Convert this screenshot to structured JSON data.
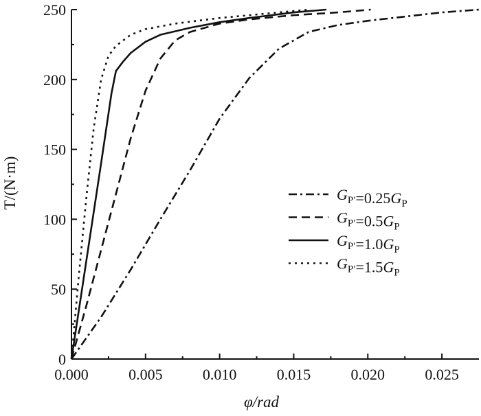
{
  "chart_data": {
    "type": "line",
    "xlabel": "φ/rad",
    "ylabel": "T/(N·m)",
    "xlim": [
      0.0,
      0.0275
    ],
    "ylim": [
      0,
      250
    ],
    "x_ticks": [
      "0.000",
      "0.005",
      "0.010",
      "0.015",
      "0.020",
      "0.025"
    ],
    "y_ticks": [
      "0",
      "50",
      "100",
      "150",
      "200",
      "250"
    ],
    "grid": false,
    "legend_position": "center-right",
    "series": [
      {
        "name": "G_P′=0.25G_P",
        "label": {
          "prefix": "G",
          "prefix_sub": "P′",
          "eq": "=0.25",
          "suffix": "G",
          "suffix_sub": "P"
        },
        "dash": "dash-dot",
        "points": [
          [
            0.0,
            0
          ],
          [
            0.002,
            30
          ],
          [
            0.004,
            64
          ],
          [
            0.006,
            100
          ],
          [
            0.008,
            135
          ],
          [
            0.01,
            172
          ],
          [
            0.012,
            201
          ],
          [
            0.014,
            222
          ],
          [
            0.016,
            234
          ],
          [
            0.018,
            239
          ],
          [
            0.02,
            242
          ],
          [
            0.0225,
            245
          ],
          [
            0.025,
            248
          ],
          [
            0.0275,
            250
          ]
        ]
      },
      {
        "name": "G_P′=0.5G_P",
        "label": {
          "prefix": "G",
          "prefix_sub": "P′",
          "eq": "=0.5",
          "suffix": "G",
          "suffix_sub": "P"
        },
        "dash": "dashed",
        "points": [
          [
            0.0,
            0
          ],
          [
            0.001,
            38
          ],
          [
            0.002,
            78
          ],
          [
            0.003,
            118
          ],
          [
            0.004,
            158
          ],
          [
            0.005,
            192
          ],
          [
            0.006,
            215
          ],
          [
            0.007,
            228
          ],
          [
            0.008,
            234
          ],
          [
            0.01,
            240
          ],
          [
            0.012,
            243
          ],
          [
            0.015,
            246
          ],
          [
            0.018,
            248
          ],
          [
            0.0202,
            250
          ]
        ]
      },
      {
        "name": "G_P′=1.0G_P",
        "label": {
          "prefix": "G",
          "prefix_sub": "P′",
          "eq": "=1.0",
          "suffix": "G",
          "suffix_sub": "P"
        },
        "dash": "solid",
        "points": [
          [
            0.0,
            0
          ],
          [
            0.001,
            70
          ],
          [
            0.002,
            140
          ],
          [
            0.0027,
            190
          ],
          [
            0.003,
            206
          ],
          [
            0.0035,
            213
          ],
          [
            0.004,
            219
          ],
          [
            0.005,
            227
          ],
          [
            0.006,
            232
          ],
          [
            0.008,
            237
          ],
          [
            0.01,
            241
          ],
          [
            0.012,
            244
          ],
          [
            0.015,
            248
          ],
          [
            0.0172,
            250
          ]
        ]
      },
      {
        "name": "G_P′=1.5G_P",
        "label": {
          "prefix": "G",
          "prefix_sub": "P′",
          "eq": "=1.5",
          "suffix": "G",
          "suffix_sub": "P"
        },
        "dash": "dotted",
        "points": [
          [
            0.0,
            0
          ],
          [
            0.0005,
            60
          ],
          [
            0.001,
            115
          ],
          [
            0.0015,
            165
          ],
          [
            0.002,
            200
          ],
          [
            0.0025,
            217
          ],
          [
            0.003,
            224
          ],
          [
            0.004,
            232
          ],
          [
            0.005,
            236
          ],
          [
            0.007,
            240
          ],
          [
            0.01,
            244
          ],
          [
            0.013,
            247
          ],
          [
            0.016,
            250
          ]
        ]
      }
    ]
  }
}
